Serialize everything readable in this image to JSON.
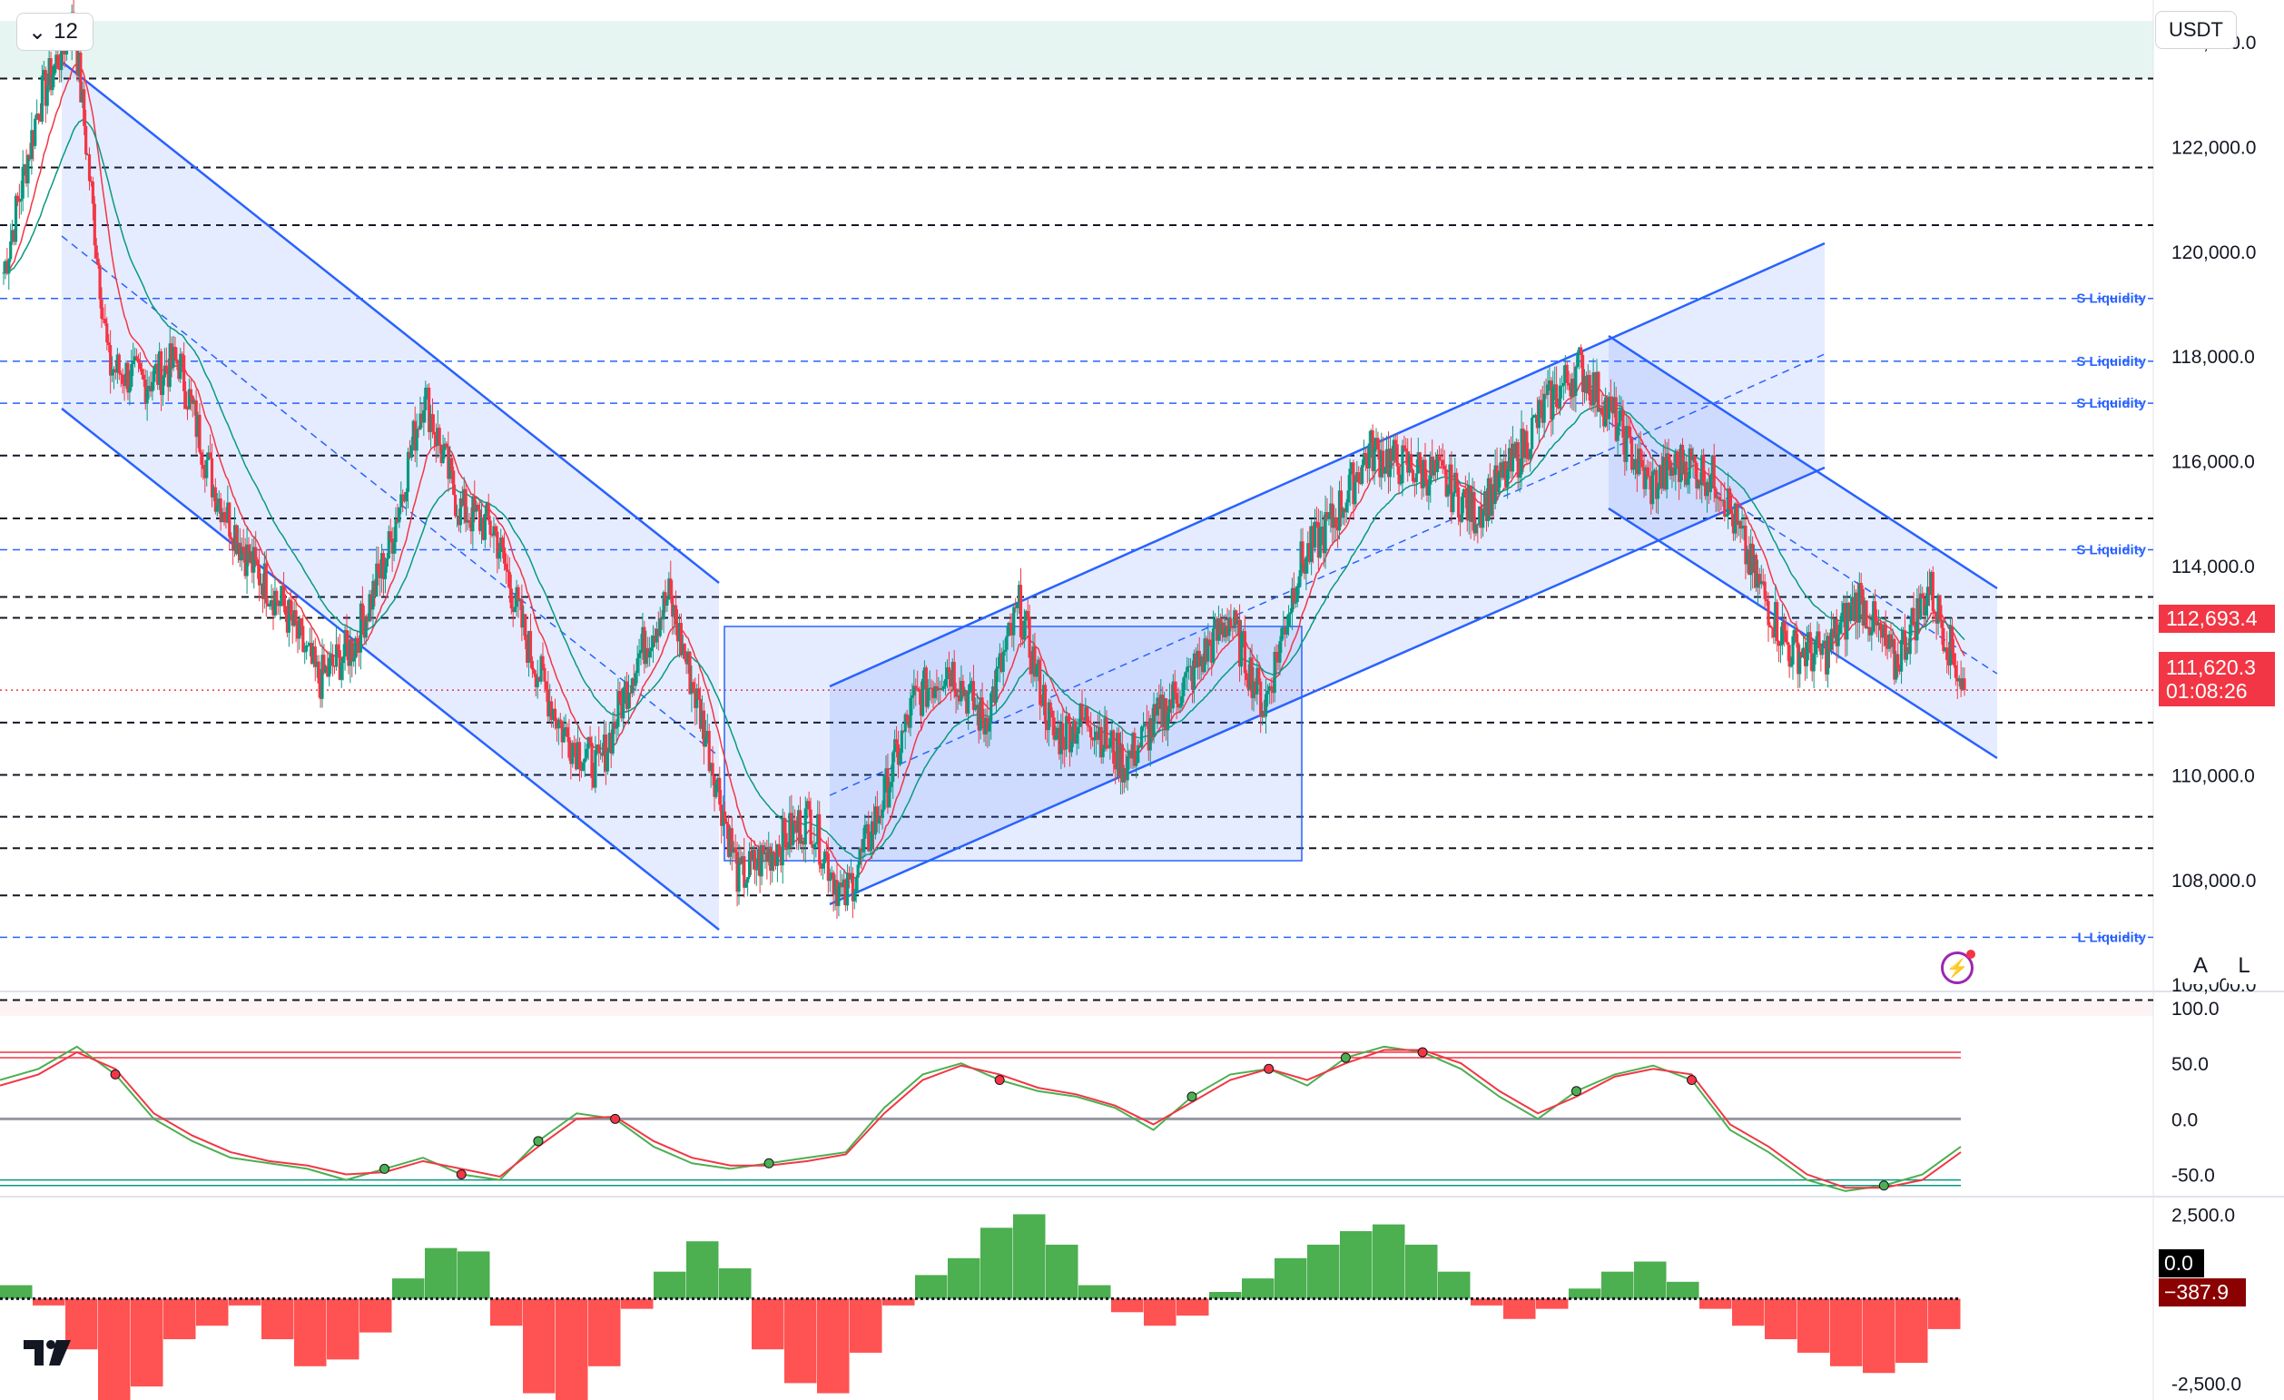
{
  "toolbar": {
    "interval_label": "12",
    "currency_label": "USDT"
  },
  "price_scale": {
    "ticks": [
      "124,000.0",
      "122,000.0",
      "120,000.0",
      "118,000.0",
      "116,000.0",
      "114,000.0",
      "112,000.0",
      "110,000.0",
      "108,000.0",
      "106,000.0"
    ],
    "last_price": "112,693.4",
    "current_price": "111,620.3",
    "countdown": "01:08:26"
  },
  "liquidity_labels": [
    "S Liquidity",
    "S Liquidity",
    "S Liquidity",
    "S Liquidity",
    "L Liquidity"
  ],
  "rsi_scale": {
    "ticks": [
      "100.0",
      "50.0",
      "0.0",
      "-50.0"
    ]
  },
  "macd_scale": {
    "ticks": [
      "2,500.0",
      "-2,500.0"
    ],
    "zero_value": "0.0",
    "current_value": "−387.9"
  },
  "scale_buttons": {
    "auto": "A",
    "log": "L"
  },
  "logo_text": "TV",
  "colors": {
    "up": "#089981",
    "down": "#f23645",
    "channel": "#2962ff",
    "channel_fill": "rgba(41,98,255,0.12)",
    "ema_red": "#f23645",
    "ema_green": "#089981",
    "hist_pos": "#4caf50",
    "hist_neg": "#ff5252"
  },
  "chart_data": [
    {
      "type": "candlestick",
      "title": "",
      "ylim": [
        105900,
        124800
      ],
      "ohlc_approx": [
        {
          "x": 0,
          "close": 119600
        },
        {
          "x": 20,
          "close": 122800
        },
        {
          "x": 40,
          "close": 124400
        },
        {
          "x": 60,
          "close": 117800
        },
        {
          "x": 80,
          "close": 117500
        },
        {
          "x": 100,
          "close": 117900
        },
        {
          "x": 120,
          "close": 115500
        },
        {
          "x": 140,
          "close": 114100
        },
        {
          "x": 160,
          "close": 113200
        },
        {
          "x": 180,
          "close": 111800
        },
        {
          "x": 200,
          "close": 112500
        },
        {
          "x": 220,
          "close": 114300
        },
        {
          "x": 240,
          "close": 117300
        },
        {
          "x": 260,
          "close": 115100
        },
        {
          "x": 280,
          "close": 114700
        },
        {
          "x": 300,
          "close": 112400
        },
        {
          "x": 320,
          "close": 110800
        },
        {
          "x": 340,
          "close": 110100
        },
        {
          "x": 360,
          "close": 112100
        },
        {
          "x": 380,
          "close": 113400
        },
        {
          "x": 400,
          "close": 110900
        },
        {
          "x": 420,
          "close": 108000
        },
        {
          "x": 440,
          "close": 108600
        },
        {
          "x": 460,
          "close": 109200
        },
        {
          "x": 480,
          "close": 107600
        },
        {
          "x": 500,
          "close": 109300
        },
        {
          "x": 520,
          "close": 111400
        },
        {
          "x": 540,
          "close": 112100
        },
        {
          "x": 560,
          "close": 111000
        },
        {
          "x": 580,
          "close": 113200
        },
        {
          "x": 600,
          "close": 110700
        },
        {
          "x": 620,
          "close": 111100
        },
        {
          "x": 640,
          "close": 110200
        },
        {
          "x": 660,
          "close": 111100
        },
        {
          "x": 680,
          "close": 112000
        },
        {
          "x": 700,
          "close": 113000
        },
        {
          "x": 720,
          "close": 111300
        },
        {
          "x": 740,
          "close": 114000
        },
        {
          "x": 760,
          "close": 114900
        },
        {
          "x": 780,
          "close": 116200
        },
        {
          "x": 800,
          "close": 115900
        },
        {
          "x": 820,
          "close": 115700
        },
        {
          "x": 840,
          "close": 115000
        },
        {
          "x": 860,
          "close": 115800
        },
        {
          "x": 880,
          "close": 117000
        },
        {
          "x": 900,
          "close": 117800
        },
        {
          "x": 920,
          "close": 116800
        },
        {
          "x": 940,
          "close": 115500
        },
        {
          "x": 960,
          "close": 116000
        },
        {
          "x": 980,
          "close": 115600
        },
        {
          "x": 1000,
          "close": 113800
        },
        {
          "x": 1020,
          "close": 112400
        },
        {
          "x": 1040,
          "close": 112300
        },
        {
          "x": 1060,
          "close": 113400
        },
        {
          "x": 1080,
          "close": 112100
        },
        {
          "x": 1100,
          "close": 113600
        },
        {
          "x": 1120,
          "close": 111620
        }
      ],
      "horizontal_levels": [
        123300,
        121600,
        120500,
        116100,
        114900,
        113400,
        113000,
        111000,
        110000,
        109200,
        108600,
        107700,
        105700
      ],
      "liquidity_levels": [
        {
          "label": "S Liquidity",
          "value": 119100
        },
        {
          "label": "S Liquidity",
          "value": 117900
        },
        {
          "label": "S Liquidity",
          "value": 117100
        },
        {
          "label": "S Liquidity",
          "value": 114300
        },
        {
          "label": "L Liquidity",
          "value": 106900
        }
      ]
    },
    {
      "type": "line",
      "title": "",
      "ylim": [
        -70,
        100
      ],
      "series": [
        {
          "values": [
            35,
            45,
            65,
            40,
            0,
            -20,
            -35,
            -40,
            -45,
            -55,
            -45,
            -35,
            -50,
            -55,
            -20,
            5,
            0,
            -25,
            -40,
            -45,
            -40,
            -35,
            -30,
            10,
            40,
            50,
            35,
            25,
            20,
            10,
            -10,
            20,
            40,
            45,
            30,
            55,
            65,
            60,
            45,
            20,
            0,
            25,
            40,
            48,
            35,
            -10,
            -30,
            -55,
            -65,
            -60,
            -50,
            -25
          ]
        },
        {
          "values": [
            30,
            40,
            60,
            45,
            5,
            -15,
            -30,
            -38,
            -42,
            -50,
            -48,
            -38,
            -45,
            -52,
            -25,
            0,
            2,
            -20,
            -35,
            -42,
            -42,
            -38,
            -32,
            5,
            35,
            48,
            40,
            28,
            22,
            12,
            -5,
            15,
            35,
            45,
            35,
            50,
            62,
            62,
            50,
            25,
            5,
            20,
            38,
            45,
            40,
            -5,
            -25,
            -50,
            -62,
            -62,
            -55,
            -30
          ]
        }
      ],
      "reference_lines": [
        60,
        55,
        -55,
        -60
      ]
    },
    {
      "type": "bar",
      "title": "",
      "ylim": [
        -3000,
        2700
      ],
      "values": [
        400,
        -200,
        -1500,
        -3100,
        -2600,
        -1200,
        -800,
        -200,
        -1200,
        -2000,
        -1800,
        -1000,
        600,
        1500,
        1400,
        -800,
        -2800,
        -3200,
        -2000,
        -300,
        800,
        1700,
        900,
        -1500,
        -2500,
        -2800,
        -1600,
        -200,
        700,
        1200,
        2100,
        2500,
        1600,
        400,
        -400,
        -800,
        -500,
        200,
        600,
        1200,
        1600,
        2000,
        2200,
        1600,
        800,
        -200,
        -600,
        -300,
        300,
        800,
        1100,
        500,
        -300,
        -800,
        -1200,
        -1600,
        -2000,
        -2200,
        -1900,
        -900
      ]
    }
  ]
}
